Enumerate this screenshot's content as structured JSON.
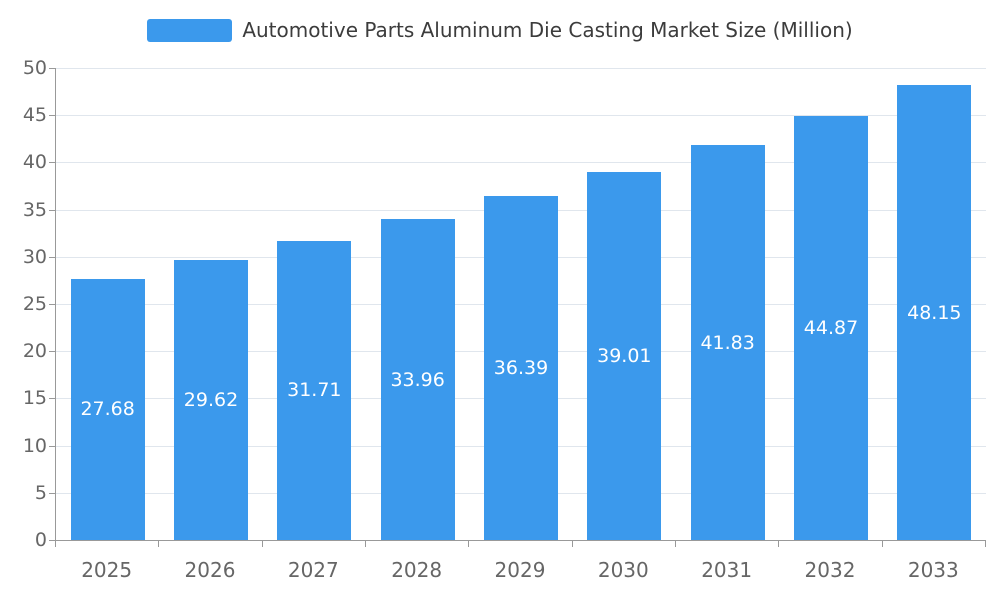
{
  "chart_data": {
    "type": "bar",
    "title": "Automotive Parts Aluminum Die Casting Market Size (Million)",
    "legend": [
      "Automotive Parts Aluminum Die Casting Market Size (Million)"
    ],
    "legend_position": "top",
    "categories": [
      "2025",
      "2026",
      "2027",
      "2028",
      "2029",
      "2030",
      "2031",
      "2032",
      "2033"
    ],
    "values": [
      27.68,
      29.62,
      31.71,
      33.96,
      36.39,
      39.01,
      41.83,
      44.87,
      48.15
    ],
    "value_label_format": "2-decimals",
    "xlabel": "",
    "ylabel": "",
    "ylim": [
      0,
      50
    ],
    "ytick_step": 5,
    "yticks": [
      0,
      5,
      10,
      15,
      20,
      25,
      30,
      35,
      40,
      45,
      50
    ],
    "grid": true,
    "bar_color": "#3B99EC",
    "value_label_color": "#ffffff",
    "axis_text_color": "#666666",
    "grid_color": "#e0e6ed",
    "axis_line_color": "#999999"
  }
}
